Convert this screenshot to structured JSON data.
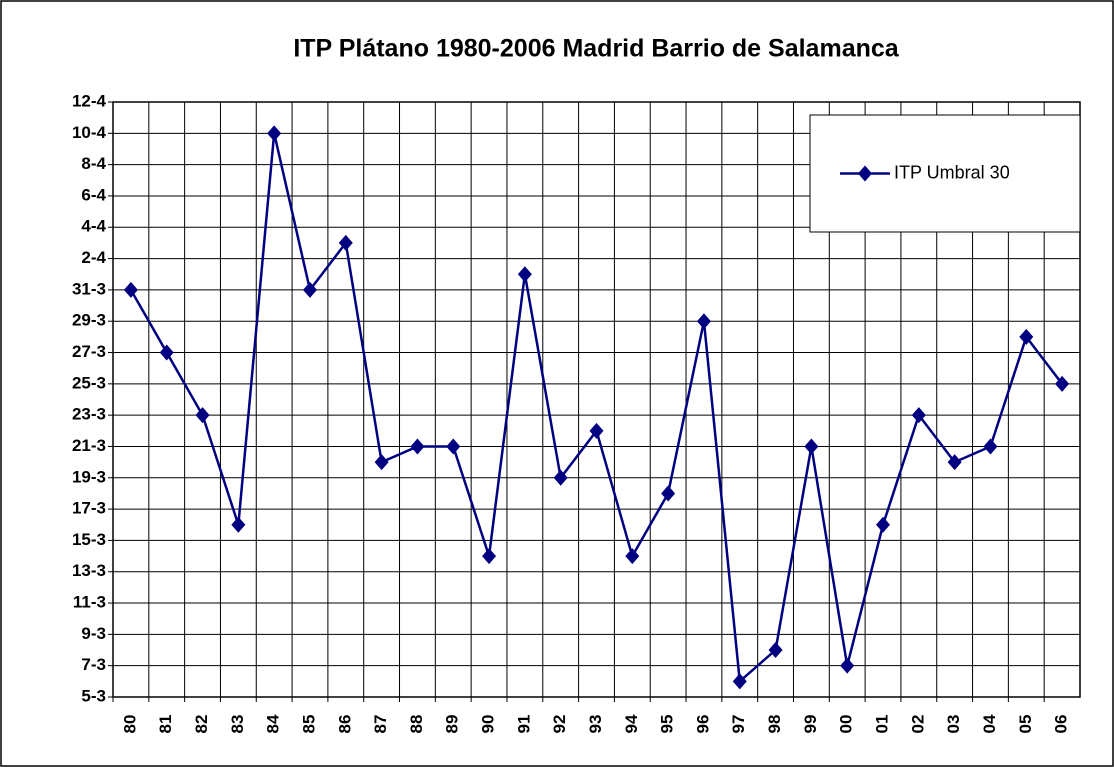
{
  "chart_data": {
    "type": "line",
    "title": "ITP Plátano 1980-2006 Madrid Barrio de Salamanca",
    "categories": [
      "80",
      "81",
      "82",
      "83",
      "84",
      "85",
      "86",
      "87",
      "88",
      "89",
      "90",
      "91",
      "92",
      "93",
      "94",
      "95",
      "96",
      "97",
      "98",
      "99",
      "00",
      "01",
      "02",
      "03",
      "04",
      "05",
      "06"
    ],
    "series": [
      {
        "name": "ITP Umbral 30",
        "color": "#000080",
        "values": [
          90,
          86,
          82,
          75,
          100,
          90,
          93,
          79,
          80,
          80,
          73,
          91,
          78,
          81,
          73,
          77,
          88,
          65,
          67,
          80,
          66,
          75,
          82,
          79,
          80,
          87,
          84
        ]
      }
    ],
    "ylim": [
      64,
      102
    ],
    "yticks": [
      {
        "value": 64,
        "label": "5-3"
      },
      {
        "value": 66,
        "label": "7-3"
      },
      {
        "value": 68,
        "label": "9-3"
      },
      {
        "value": 70,
        "label": "11-3"
      },
      {
        "value": 72,
        "label": "13-3"
      },
      {
        "value": 74,
        "label": "15-3"
      },
      {
        "value": 76,
        "label": "17-3"
      },
      {
        "value": 78,
        "label": "19-3"
      },
      {
        "value": 80,
        "label": "21-3"
      },
      {
        "value": 82,
        "label": "23-3"
      },
      {
        "value": 84,
        "label": "25-3"
      },
      {
        "value": 86,
        "label": "27-3"
      },
      {
        "value": 88,
        "label": "29-3"
      },
      {
        "value": 90,
        "label": "31-3"
      },
      {
        "value": 92,
        "label": "2-4"
      },
      {
        "value": 94,
        "label": "4-4"
      },
      {
        "value": 96,
        "label": "6-4"
      },
      {
        "value": 98,
        "label": "8-4"
      },
      {
        "value": 100,
        "label": "10-4"
      },
      {
        "value": 102,
        "label": "12-4"
      }
    ],
    "grid": true,
    "legend": "upper right"
  }
}
